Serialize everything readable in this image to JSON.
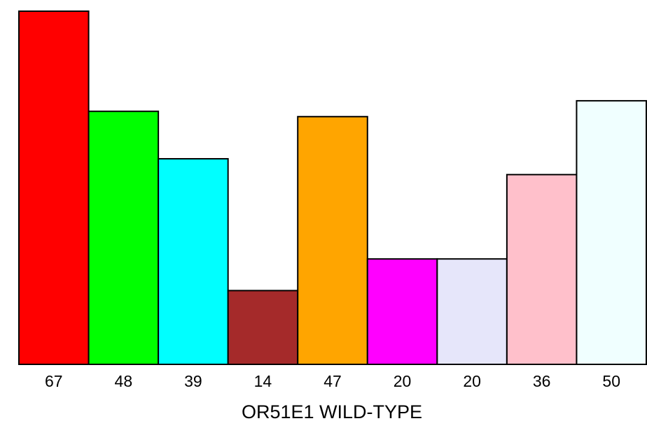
{
  "chart_data": {
    "type": "bar",
    "title": "",
    "xlabel": "OR51E1 WILD-TYPE",
    "ylabel": "",
    "categories": [
      "67",
      "48",
      "39",
      "14",
      "47",
      "20",
      "20",
      "36",
      "50"
    ],
    "values": [
      67,
      48,
      39,
      14,
      47,
      20,
      20,
      36,
      50
    ],
    "ylim": [
      0,
      67
    ],
    "colors": [
      "#ff0000",
      "#00ff00",
      "#00ffff",
      "#a52a2a",
      "#ffa500",
      "#ff00ff",
      "#e6e6fa",
      "#ffc0cb",
      "#f0ffff"
    ],
    "bar_outline_color": "#000000",
    "grid": false,
    "legend": "none"
  }
}
